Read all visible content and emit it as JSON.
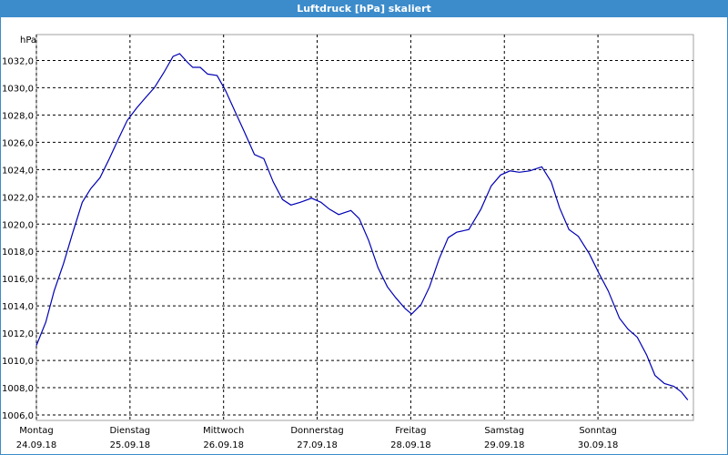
{
  "chart_data": {
    "type": "line",
    "title": "Luftdruck [hPa] skaliert",
    "y_label": "hPa",
    "color": "#0000b4",
    "grid": true,
    "xlim": [
      0,
      7.02
    ],
    "ylim": [
      1005.6,
      1033.9
    ],
    "xticks": [
      {
        "value": 0,
        "label": "Montag",
        "date": "24.09.18"
      },
      {
        "value": 1,
        "label": "Dienstag",
        "date": "25.09.18"
      },
      {
        "value": 2,
        "label": "Mittwoch",
        "date": "26.09.18"
      },
      {
        "value": 3,
        "label": "Donnerstag",
        "date": "27.09.18"
      },
      {
        "value": 4,
        "label": "Freitag",
        "date": "28.09.18"
      },
      {
        "value": 5,
        "label": "Samstag",
        "date": "29.09.18"
      },
      {
        "value": 6,
        "label": "Sonntag",
        "date": "30.09.18"
      }
    ],
    "yticks": [
      {
        "value": 1006,
        "label": "1006,0"
      },
      {
        "value": 1008,
        "label": "1008,0"
      },
      {
        "value": 1010,
        "label": "1010,0"
      },
      {
        "value": 1012,
        "label": "1012,0"
      },
      {
        "value": 1014,
        "label": "1014,0"
      },
      {
        "value": 1016,
        "label": "1016,0"
      },
      {
        "value": 1018,
        "label": "1018,0"
      },
      {
        "value": 1020,
        "label": "1020,0"
      },
      {
        "value": 1022,
        "label": "1022,0"
      },
      {
        "value": 1024,
        "label": "1024,0"
      },
      {
        "value": 1026,
        "label": "1026,0"
      },
      {
        "value": 1028,
        "label": "1028,0"
      },
      {
        "value": 1030,
        "label": "1030,0"
      },
      {
        "value": 1032,
        "label": "1032,0"
      }
    ],
    "x": [
      0,
      0.1,
      0.19,
      0.29,
      0.39,
      0.49,
      0.58,
      0.68,
      0.78,
      0.88,
      0.97,
      1.07,
      1.17,
      1.26,
      1.36,
      1.46,
      1.53,
      1.61,
      1.67,
      1.75,
      1.83,
      1.93,
      2.02,
      2.12,
      2.22,
      2.33,
      2.43,
      2.53,
      2.63,
      2.72,
      2.82,
      2.94,
      3.04,
      3.13,
      3.23,
      3.36,
      3.45,
      3.55,
      3.65,
      3.75,
      3.84,
      3.94,
      4.01,
      4.11,
      4.2,
      4.3,
      4.4,
      4.49,
      4.62,
      4.75,
      4.86,
      4.96,
      5.06,
      5.16,
      5.27,
      5.4,
      5.5,
      5.59,
      5.69,
      5.79,
      5.91,
      6.01,
      6.11,
      6.23,
      6.32,
      6.42,
      6.52,
      6.61,
      6.71,
      6.81,
      6.89,
      6.96
    ],
    "values": [
      1011.1,
      1012.8,
      1015.1,
      1017.1,
      1019.4,
      1021.6,
      1022.6,
      1023.4,
      1024.8,
      1026.3,
      1027.6,
      1028.5,
      1029.3,
      1030.0,
      1031.1,
      1032.3,
      1032.5,
      1031.9,
      1031.5,
      1031.5,
      1031.0,
      1030.9,
      1029.8,
      1028.3,
      1026.8,
      1025.1,
      1024.8,
      1023.1,
      1021.8,
      1021.4,
      1021.6,
      1021.9,
      1021.6,
      1021.1,
      1020.7,
      1021.0,
      1020.4,
      1018.8,
      1016.8,
      1015.4,
      1014.6,
      1013.8,
      1013.4,
      1014.1,
      1015.4,
      1017.4,
      1019.0,
      1019.4,
      1019.6,
      1021.1,
      1022.8,
      1023.6,
      1023.9,
      1023.8,
      1023.9,
      1024.2,
      1023.1,
      1021.2,
      1019.6,
      1019.1,
      1017.8,
      1016.4,
      1015.1,
      1013.1,
      1012.3,
      1011.7,
      1010.4,
      1008.9,
      1008.3,
      1008.1,
      1007.7,
      1007.1
    ]
  }
}
